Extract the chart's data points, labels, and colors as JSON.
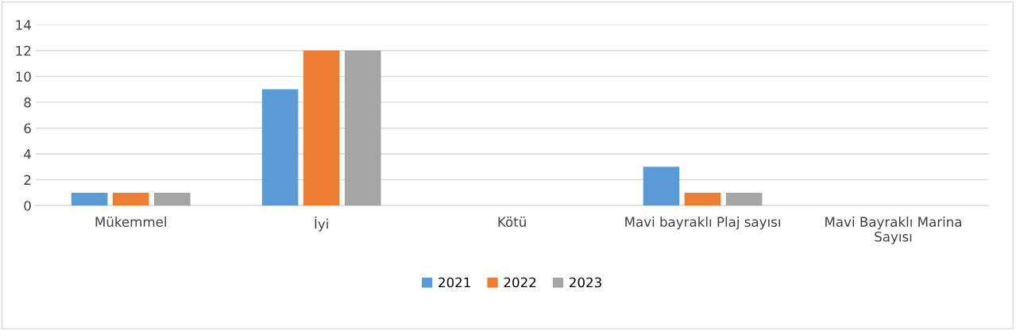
{
  "chart_data": {
    "type": "bar",
    "categories": [
      "Mükemmel",
      "İyi",
      "Kötü",
      "Mavi bayraklı Plaj sayısı",
      "Mavi Bayraklı Marina\nSayısı"
    ],
    "series": [
      {
        "name": "2021",
        "color": "#5b9bd5",
        "values": [
          1,
          9,
          0,
          3,
          0
        ]
      },
      {
        "name": "2022",
        "color": "#ed7d31",
        "values": [
          1,
          12,
          0,
          1,
          0
        ]
      },
      {
        "name": "2023",
        "color": "#a5a5a5",
        "values": [
          1,
          12,
          0,
          1,
          0
        ]
      }
    ],
    "ylim": [
      0,
      14
    ],
    "yticks": [
      0,
      2,
      4,
      6,
      8,
      10,
      12,
      14
    ],
    "grid": "y",
    "legend": "bottom"
  }
}
